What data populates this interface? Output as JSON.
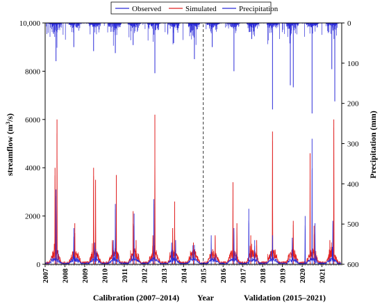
{
  "chart_data": {
    "type": "line",
    "title": "",
    "xlabel": "Year",
    "ylabel_left": "streamflow (m³/s)",
    "ylabel_left_main": "streamflow (m",
    "ylabel_left_sup": "3",
    "ylabel_left_end": "/s)",
    "ylabel_right": "Precipitation (mm)",
    "x_ticks": [
      "2007",
      "2008",
      "2009",
      "2010",
      "2011",
      "2012",
      "2013",
      "2014",
      "2015",
      "2016",
      "2017",
      "2018",
      "2019",
      "2020",
      "2021"
    ],
    "xlim": [
      2007,
      2022
    ],
    "ylim_left": [
      0,
      10000
    ],
    "y_ticks_left": [
      "0",
      "2000",
      "4000",
      "6000",
      "8000",
      "10,000"
    ],
    "y_tick_values_left": [
      0,
      2000,
      4000,
      6000,
      8000,
      10000
    ],
    "ylim_right": [
      600,
      0
    ],
    "y_ticks_right": [
      "0",
      "100",
      "200",
      "300",
      "400",
      "500",
      "600"
    ],
    "y_tick_values_right": [
      0,
      100,
      200,
      300,
      400,
      500,
      600
    ],
    "split_year": 2015,
    "period_labels": {
      "calibration": "Calibration (2007–2014)",
      "validation": "Validation (2015–2021)"
    },
    "legend_position": "top",
    "series": [
      {
        "name": "Observed",
        "color": "#2a2ad8",
        "axis": "left",
        "peaks": [
          [
            2007.55,
            3100
          ],
          [
            2008.45,
            1500
          ],
          [
            2009.5,
            900
          ],
          [
            2010.45,
            1000
          ],
          [
            2010.55,
            2500
          ],
          [
            2011.5,
            2100
          ],
          [
            2012.5,
            2700
          ],
          [
            2013.4,
            900
          ],
          [
            2013.6,
            1000
          ],
          [
            2014.55,
            800
          ],
          [
            2015.4,
            1200
          ],
          [
            2016.55,
            1500
          ],
          [
            2017.3,
            2300
          ],
          [
            2017.6,
            1000
          ],
          [
            2018.5,
            1200
          ],
          [
            2019.5,
            1100
          ],
          [
            2020.15,
            2000
          ],
          [
            2020.5,
            5200
          ],
          [
            2020.65,
            1700
          ],
          [
            2021.55,
            1800
          ]
        ]
      },
      {
        "name": "Simulated",
        "color": "#e02020",
        "axis": "left",
        "peaks": [
          [
            2007.5,
            4000
          ],
          [
            2007.6,
            6000
          ],
          [
            2008.5,
            1700
          ],
          [
            2009.45,
            4000
          ],
          [
            2009.55,
            3500
          ],
          [
            2010.4,
            1000
          ],
          [
            2010.6,
            3700
          ],
          [
            2011.45,
            2200
          ],
          [
            2011.6,
            1000
          ],
          [
            2012.45,
            1200
          ],
          [
            2012.55,
            6200
          ],
          [
            2013.45,
            1500
          ],
          [
            2013.55,
            2600
          ],
          [
            2014.5,
            900
          ],
          [
            2015.6,
            1200
          ],
          [
            2016.5,
            3400
          ],
          [
            2016.7,
            1700
          ],
          [
            2017.4,
            1200
          ],
          [
            2017.7,
            1000
          ],
          [
            2018.5,
            5500
          ],
          [
            2019.55,
            1800
          ],
          [
            2020.4,
            4600
          ],
          [
            2020.6,
            1600
          ],
          [
            2021.4,
            1000
          ],
          [
            2021.6,
            6000
          ]
        ]
      },
      {
        "name": "Precipitation",
        "color": "#2a2ad8",
        "axis": "right",
        "peaks": [
          [
            2007.55,
            95
          ],
          [
            2008.45,
            60
          ],
          [
            2009.45,
            70
          ],
          [
            2010.55,
            75
          ],
          [
            2011.45,
            55
          ],
          [
            2012.55,
            125
          ],
          [
            2013.5,
            50
          ],
          [
            2014.55,
            90
          ],
          [
            2015.45,
            60
          ],
          [
            2016.55,
            120
          ],
          [
            2017.45,
            40
          ],
          [
            2018.5,
            215
          ],
          [
            2019.4,
            155
          ],
          [
            2019.55,
            160
          ],
          [
            2020.5,
            225
          ],
          [
            2021.5,
            115
          ],
          [
            2021.65,
            195
          ]
        ]
      }
    ]
  }
}
